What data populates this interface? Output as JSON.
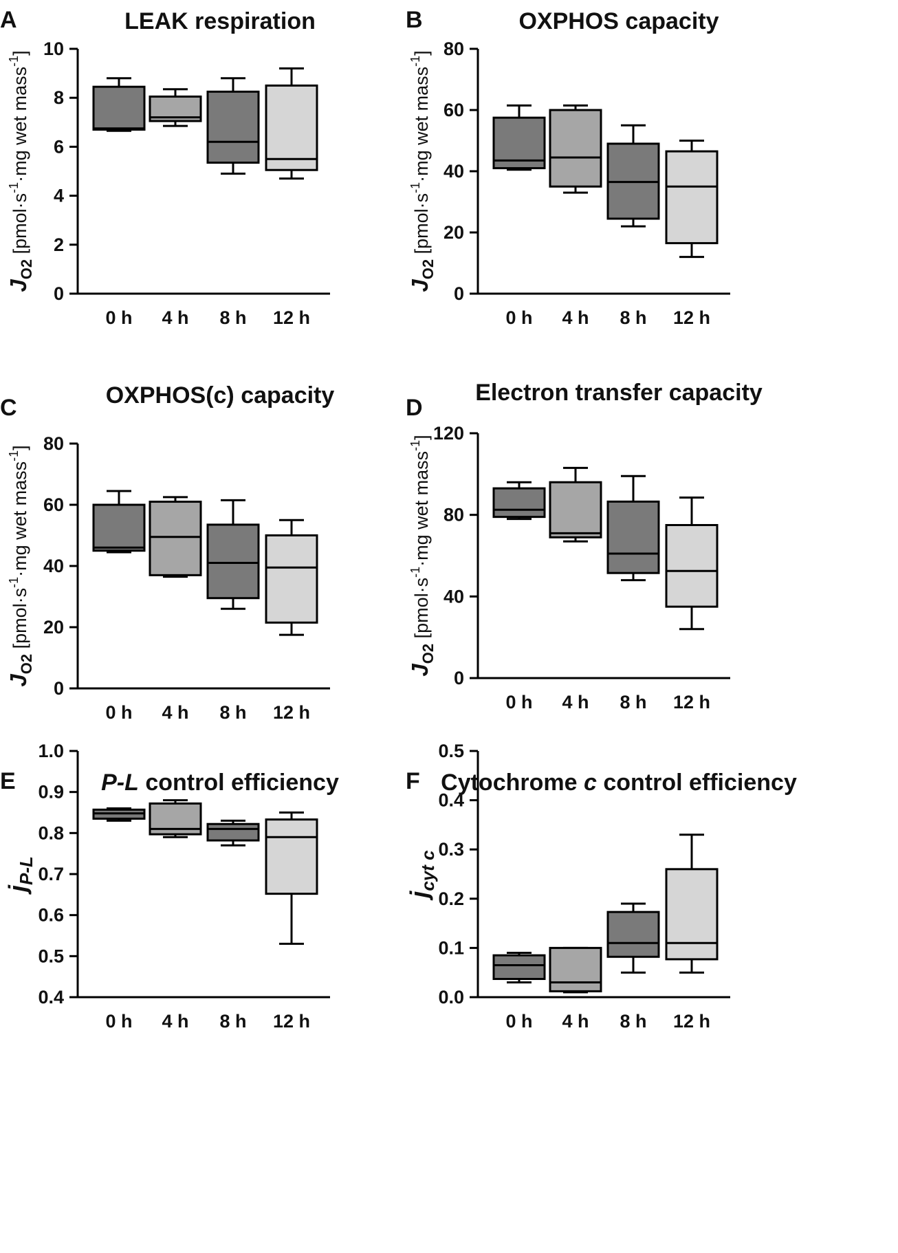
{
  "colors": {
    "dark": "#7a7a7a",
    "medium": "#a6a6a6",
    "light": "#d6d6d6",
    "line": "#000000"
  },
  "chart_data": [
    {
      "panel": "A",
      "type": "boxplot",
      "title": "LEAK respiration",
      "title_italic_prefix": "",
      "ylabel_parts": [
        "J",
        "O2",
        " [pmol·s",
        "-1",
        "·mg wet mass",
        "-1",
        "]"
      ],
      "ylim": [
        0,
        10
      ],
      "yticks": [
        0,
        2,
        4,
        6,
        8,
        10
      ],
      "ytick_labels": [
        "0",
        "2",
        "4",
        "6",
        "8",
        "10"
      ],
      "categories": [
        "0 h",
        "4 h",
        "8 h",
        "12 h"
      ],
      "boxes": [
        {
          "min": 6.65,
          "q1": 6.7,
          "median": 6.75,
          "q3": 8.45,
          "max": 8.8,
          "fill": "dark"
        },
        {
          "min": 6.85,
          "q1": 7.05,
          "median": 7.2,
          "q3": 8.05,
          "max": 8.35,
          "fill": "medium"
        },
        {
          "min": 4.9,
          "q1": 5.35,
          "median": 6.2,
          "q3": 8.25,
          "max": 8.8,
          "fill": "dark"
        },
        {
          "min": 4.7,
          "q1": 5.05,
          "median": 5.5,
          "q3": 8.5,
          "max": 9.2,
          "fill": "light"
        }
      ]
    },
    {
      "panel": "B",
      "type": "boxplot",
      "title": "OXPHOS capacity",
      "title_italic_prefix": "",
      "ylabel_parts": [
        "J",
        "O2",
        " [pmol·s",
        "-1",
        "·mg wet mass",
        "-1",
        "]"
      ],
      "ylim": [
        0,
        80
      ],
      "yticks": [
        0,
        20,
        40,
        60,
        80
      ],
      "ytick_labels": [
        "0",
        "20",
        "40",
        "60",
        "80"
      ],
      "categories": [
        "0 h",
        "4 h",
        "8 h",
        "12 h"
      ],
      "boxes": [
        {
          "min": 40.5,
          "q1": 41,
          "median": 43.5,
          "q3": 57.5,
          "max": 61.5,
          "fill": "dark"
        },
        {
          "min": 33,
          "q1": 35,
          "median": 44.5,
          "q3": 60,
          "max": 61.5,
          "fill": "medium"
        },
        {
          "min": 22,
          "q1": 24.5,
          "median": 36.5,
          "q3": 49,
          "max": 55,
          "fill": "dark"
        },
        {
          "min": 12,
          "q1": 16.5,
          "median": 35,
          "q3": 46.5,
          "max": 50,
          "fill": "light"
        }
      ]
    },
    {
      "panel": "C",
      "type": "boxplot",
      "title": "OXPHOS(c) capacity",
      "title_italic_prefix": "",
      "ylabel_parts": [
        "J",
        "O2",
        " [pmol·s",
        "-1",
        "·mg wet mass",
        "-1",
        "]"
      ],
      "ylim": [
        0,
        80
      ],
      "yticks": [
        0,
        20,
        40,
        60,
        80
      ],
      "ytick_labels": [
        "0",
        "20",
        "40",
        "60",
        "80"
      ],
      "categories": [
        "0 h",
        "4 h",
        "8 h",
        "12 h"
      ],
      "boxes": [
        {
          "min": 44.5,
          "q1": 45,
          "median": 46,
          "q3": 60,
          "max": 64.5,
          "fill": "dark"
        },
        {
          "min": 36.5,
          "q1": 37,
          "median": 49.5,
          "q3": 61,
          "max": 62.5,
          "fill": "medium"
        },
        {
          "min": 26,
          "q1": 29.5,
          "median": 41,
          "q3": 53.5,
          "max": 61.5,
          "fill": "dark"
        },
        {
          "min": 17.5,
          "q1": 21.5,
          "median": 39.5,
          "q3": 50,
          "max": 55,
          "fill": "light"
        }
      ]
    },
    {
      "panel": "D",
      "type": "boxplot",
      "title": "Electron transfer capacity",
      "title_italic_prefix": "",
      "ylabel_parts": [
        "J",
        "O2",
        " [pmol·s",
        "-1",
        "·mg wet mass",
        "-1",
        "]"
      ],
      "ylim": [
        0,
        120
      ],
      "yticks": [
        0,
        40,
        80,
        120
      ],
      "ytick_labels": [
        "0",
        "40",
        "80",
        "120"
      ],
      "categories": [
        "0 h",
        "4 h",
        "8 h",
        "12 h"
      ],
      "boxes": [
        {
          "min": 78,
          "q1": 79,
          "median": 82.5,
          "q3": 93,
          "max": 96,
          "fill": "dark"
        },
        {
          "min": 67,
          "q1": 69,
          "median": 71,
          "q3": 96,
          "max": 103,
          "fill": "medium"
        },
        {
          "min": 48,
          "q1": 51.5,
          "median": 61,
          "q3": 86.5,
          "max": 99,
          "fill": "dark"
        },
        {
          "min": 24,
          "q1": 35,
          "median": 52.5,
          "q3": 75,
          "max": 88.5,
          "fill": "light"
        }
      ]
    },
    {
      "panel": "E",
      "type": "boxplot",
      "title": " control efficiency",
      "title_italic_prefix": "P-L",
      "ylabel_parts": [
        "j",
        "P-L"
      ],
      "ylim": [
        0.4,
        1.0
      ],
      "yticks": [
        0.4,
        0.5,
        0.6,
        0.7,
        0.8,
        0.9,
        1.0
      ],
      "ytick_labels": [
        "0.4",
        "0.5",
        "0.6",
        "0.7",
        "0.8",
        "0.9",
        "1.0"
      ],
      "categories": [
        "0 h",
        "4 h",
        "8 h",
        "12 h"
      ],
      "boxes": [
        {
          "min": 0.83,
          "q1": 0.835,
          "median": 0.848,
          "q3": 0.857,
          "max": 0.86,
          "fill": "dark"
        },
        {
          "min": 0.79,
          "q1": 0.797,
          "median": 0.81,
          "q3": 0.872,
          "max": 0.88,
          "fill": "medium"
        },
        {
          "min": 0.77,
          "q1": 0.782,
          "median": 0.81,
          "q3": 0.822,
          "max": 0.83,
          "fill": "dark"
        },
        {
          "min": 0.53,
          "q1": 0.652,
          "median": 0.79,
          "q3": 0.833,
          "max": 0.85,
          "fill": "light"
        }
      ]
    },
    {
      "panel": "F",
      "type": "boxplot",
      "title": " control efficiency",
      "title_italic_prefix": "Cytochrome |c",
      "ylabel_parts": [
        "j",
        "cyt c"
      ],
      "ylim": [
        0.0,
        0.5
      ],
      "yticks": [
        0.0,
        0.1,
        0.2,
        0.3,
        0.4,
        0.5
      ],
      "ytick_labels": [
        "0.0",
        "0.1",
        "0.2",
        "0.3",
        "0.4",
        "0.5"
      ],
      "categories": [
        "0 h",
        "4 h",
        "8 h",
        "12 h"
      ],
      "boxes": [
        {
          "min": 0.03,
          "q1": 0.037,
          "median": 0.065,
          "q3": 0.085,
          "max": 0.09,
          "fill": "dark"
        },
        {
          "min": 0.01,
          "q1": 0.012,
          "median": 0.03,
          "q3": 0.1,
          "max": 0.1,
          "fill": "medium"
        },
        {
          "min": 0.05,
          "q1": 0.082,
          "median": 0.11,
          "q3": 0.173,
          "max": 0.19,
          "fill": "dark"
        },
        {
          "min": 0.05,
          "q1": 0.077,
          "median": 0.11,
          "q3": 0.26,
          "max": 0.33,
          "fill": "light"
        }
      ]
    }
  ]
}
